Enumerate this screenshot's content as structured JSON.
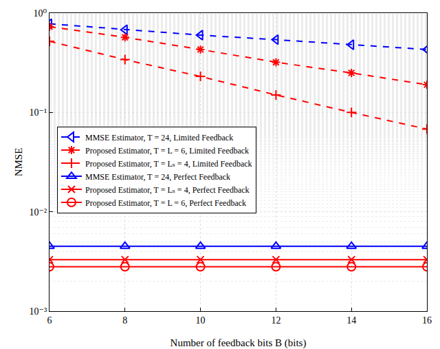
{
  "chart_data": {
    "type": "line",
    "x_label": "Number of feedback bits B (bits)",
    "y_label": "NMSE",
    "x": [
      6,
      8,
      10,
      12,
      14,
      16
    ],
    "xlim": [
      6,
      16
    ],
    "xticks": [
      6,
      8,
      10,
      12,
      14,
      16
    ],
    "ylim": [
      0.001,
      1
    ],
    "yticks": [
      {
        "value": 0.001,
        "label": "10⁻³"
      },
      {
        "value": 0.01,
        "label": "10⁻²"
      },
      {
        "value": 0.1,
        "label": "10⁻¹"
      },
      {
        "value": 1,
        "label": "10⁰"
      }
    ],
    "log": "y",
    "grid": true,
    "legend": "center",
    "series": [
      {
        "name": "MMSE Estimator, T = 24, Limited Feedback",
        "color": "#0000ff",
        "marker": "triangle-left",
        "line_style": "dash",
        "values": [
          0.78,
          0.68,
          0.6,
          0.54,
          0.48,
          0.43
        ]
      },
      {
        "name": "Proposed Estimator, T = L = 6, Limited Feedback",
        "color": "#ff0000",
        "marker": "asterisk",
        "line_style": "dash",
        "values": [
          0.73,
          0.57,
          0.43,
          0.32,
          0.25,
          0.19
        ]
      },
      {
        "name": "Proposed Estimator, T = Lₛ = 4, Limited Feedback",
        "color": "#ff0000",
        "marker": "cross",
        "line_style": "dash",
        "values": [
          0.52,
          0.34,
          0.23,
          0.15,
          0.1,
          0.068
        ]
      },
      {
        "name": "MMSE Estimator, T = 24, Perfect Feedback",
        "color": "#0000ff",
        "marker": "triangle-up",
        "line_style": "solid",
        "values": [
          0.0045,
          0.0045,
          0.0045,
          0.0045,
          0.0045,
          0.0045
        ]
      },
      {
        "name": "Proposed Estimator, T = Lₛ = 4, Perfect Feedback",
        "color": "#ff0000",
        "marker": "x",
        "line_style": "solid",
        "values": [
          0.0033,
          0.0033,
          0.0033,
          0.0033,
          0.0033,
          0.0033
        ]
      },
      {
        "name": "Proposed Estimator, T = L = 6, Perfect Feedback",
        "color": "#ff0000",
        "marker": "circle",
        "line_style": "solid",
        "values": [
          0.0028,
          0.0028,
          0.0028,
          0.0028,
          0.0028,
          0.0028
        ]
      }
    ]
  }
}
